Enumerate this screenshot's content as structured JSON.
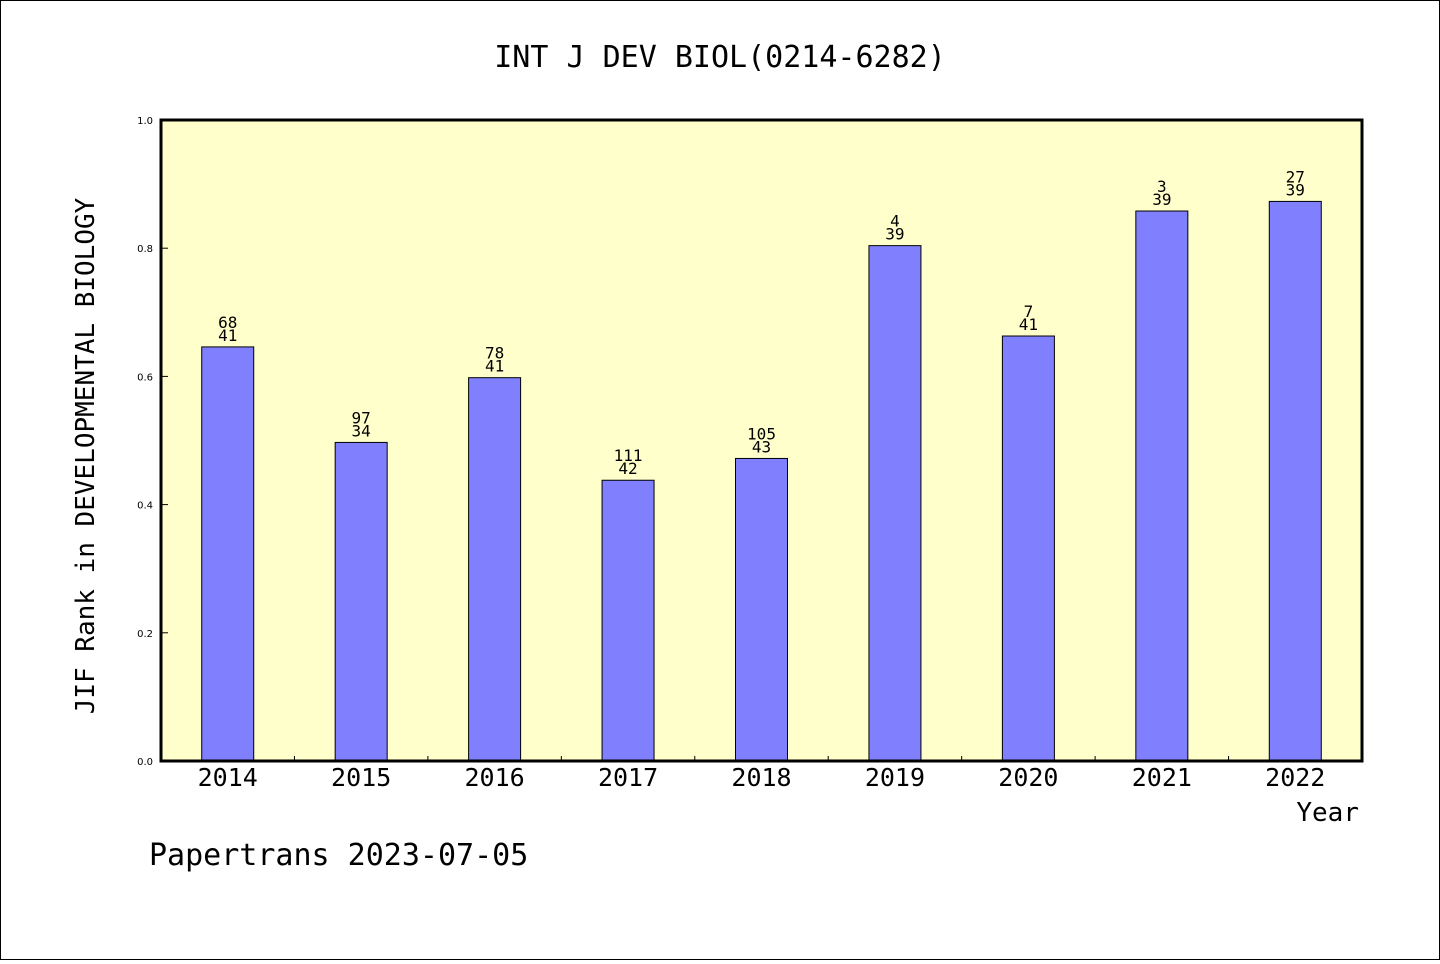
{
  "chart_data": {
    "type": "bar",
    "title": "INT J DEV BIOL(0214-6282)",
    "xlabel": "Year",
    "ylabel": "JIF Rank in DEVELOPMENTAL BIOLOGY",
    "categories": [
      "2014",
      "2015",
      "2016",
      "2017",
      "2018",
      "2019",
      "2020",
      "2021",
      "2022"
    ],
    "values": [
      0.646,
      0.497,
      0.598,
      0.438,
      0.472,
      0.804,
      0.663,
      0.858,
      0.873
    ],
    "bar_labels": [
      {
        "top": "68",
        "bottom": "41"
      },
      {
        "top": "97",
        "bottom": "34"
      },
      {
        "top": "78",
        "bottom": "41"
      },
      {
        "top": "111",
        "bottom": "42"
      },
      {
        "top": "105",
        "bottom": "43"
      },
      {
        "top": "4",
        "bottom": "39"
      },
      {
        "top": "7",
        "bottom": "41"
      },
      {
        "top": "3",
        "bottom": "39"
      },
      {
        "top": "27",
        "bottom": "39"
      }
    ],
    "ylim": [
      0.0,
      1.0
    ],
    "yticks": [
      "0.0",
      "0.2",
      "0.4",
      "0.6",
      "0.8",
      "1.0"
    ],
    "grid": false,
    "footer": "Papertrans 2023-07-05"
  },
  "colors": {
    "plot_background": "#ffffcc",
    "bar_fill": "#8080ff",
    "bar_stroke": "#000000",
    "frame": "#000000"
  }
}
